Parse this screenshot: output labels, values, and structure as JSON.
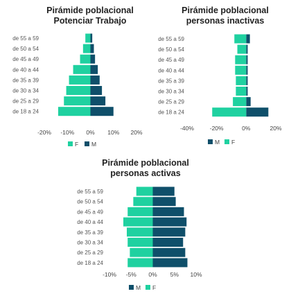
{
  "colors": {
    "F": "#1fd1a0",
    "M": "#0f4f6a"
  },
  "chart_data": [
    {
      "type": "bar",
      "title": [
        "Pirámide poblacional",
        "Potenciar Trabajo"
      ],
      "categories": [
        "de 55 a 59",
        "de 50 a 54",
        "de 45 a 49",
        "de 40 a 44",
        "de 35 a 39",
        "de 30 a 34",
        "de 25 a 29",
        "de 18 a 24"
      ],
      "series": [
        {
          "name": "F",
          "values": [
            -2.2,
            -3.2,
            -4.5,
            -7.5,
            -9.3,
            -10.5,
            -11.5,
            -14.0
          ]
        },
        {
          "name": "M",
          "values": [
            0.8,
            1.5,
            2.0,
            3.2,
            4.0,
            5.0,
            6.5,
            10.0
          ]
        }
      ],
      "xticks": [
        -20,
        -10,
        0,
        10,
        20
      ],
      "xtick_labels": [
        "-20%",
        "-10%",
        "0%",
        "10%",
        "20%"
      ],
      "xlim": [
        -20,
        20
      ],
      "legend": [
        "F",
        "M"
      ],
      "legend_position": "bottom"
    },
    {
      "type": "bar",
      "title": [
        "Pirámide poblacional",
        "personas inactivas"
      ],
      "categories": [
        "de 55 a 59",
        "de 50 a 54",
        "de 45 a 49",
        "de 40 a 44",
        "de 35 a 39",
        "de 30 a 34",
        "de 25 a 29",
        "de 18 a 24"
      ],
      "series": [
        {
          "name": "M",
          "values": [
            2.5,
            1.0,
            1.0,
            1.0,
            1.0,
            1.0,
            3.0,
            15.0
          ]
        },
        {
          "name": "F",
          "values": [
            -8.0,
            -6.0,
            -7.5,
            -7.5,
            -7.0,
            -7.0,
            -9.0,
            -23.0
          ]
        }
      ],
      "xticks": [
        -40,
        -20,
        0,
        20
      ],
      "xtick_labels": [
        "-40%",
        "-20%",
        "0%",
        "20%"
      ],
      "xlim": [
        -40,
        20
      ],
      "legend": [
        "M",
        "F"
      ],
      "legend_position": "bottom"
    },
    {
      "type": "bar",
      "title": [
        "Pirámide poblacional",
        "personas activas"
      ],
      "categories": [
        "de 55 a 59",
        "de 50 a 54",
        "de 45 a 49",
        "de 40 a 44",
        "de 35 a 39",
        "de 30 a 34",
        "de 25 a 29",
        "de 18 a 24"
      ],
      "series": [
        {
          "name": "M",
          "values": [
            5.0,
            5.3,
            7.2,
            7.8,
            7.5,
            7.0,
            7.5,
            8.0
          ]
        },
        {
          "name": "F",
          "values": [
            -3.8,
            -4.5,
            -5.8,
            -6.8,
            -6.0,
            -5.8,
            -5.3,
            -5.8
          ]
        }
      ],
      "xticks": [
        -10,
        -5,
        0,
        5,
        10
      ],
      "xtick_labels": [
        "-10%",
        "-5%",
        "0%",
        "5%",
        "10%"
      ],
      "xlim": [
        -10,
        10
      ],
      "legend": [
        "M",
        "F"
      ],
      "legend_position": "bottom"
    }
  ]
}
